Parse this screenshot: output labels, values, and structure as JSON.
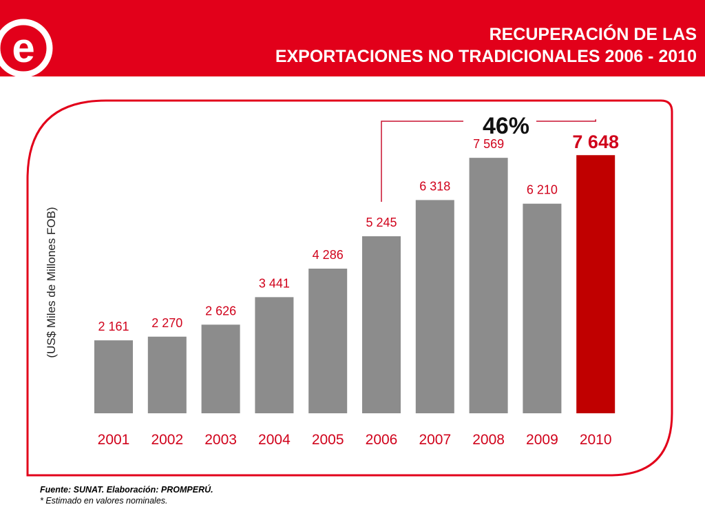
{
  "header": {
    "title_line1": "RECUPERACIÓN DE LAS",
    "title_line2": "EXPORTACIONES NO TRADICIONALES 2006 - 2010",
    "logo_letter": "e"
  },
  "colors": {
    "brand_red": "#e2001a",
    "bar_gray": "#8c8c8c",
    "bar_highlight": "#c00000",
    "label_red": "#d0021b",
    "frame_red": "#e2001a"
  },
  "chart_data": {
    "type": "bar",
    "categories": [
      "2001",
      "2002",
      "2003",
      "2004",
      "2005",
      "2006",
      "2007",
      "2008",
      "2009",
      "2010"
    ],
    "values": [
      2161,
      2270,
      2626,
      3441,
      4286,
      5245,
      6318,
      7569,
      6210,
      7648
    ],
    "value_labels": [
      "2 161",
      "2 270",
      "2 626",
      "3 441",
      "4 286",
      "5 245",
      "6 318",
      "7 569",
      "6 210",
      "7 648"
    ],
    "highlight_index": 9,
    "title": "",
    "xlabel": "",
    "ylabel": "(US$ Miles de Millones FOB)",
    "ylim": [
      0,
      8000
    ],
    "grid": false,
    "annotations": [
      {
        "text": "46%",
        "from_category": "2006",
        "to_category": "2010"
      }
    ]
  },
  "footer": {
    "source": "Fuente: SUNAT. Elaboración: PROMPERÚ.",
    "note": "* Estimado en valores nominales."
  }
}
